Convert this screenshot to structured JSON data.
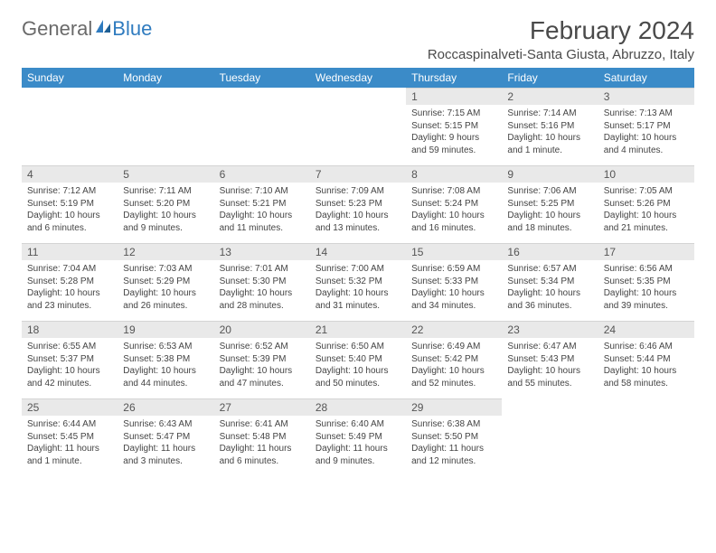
{
  "logo": {
    "text_gray": "General",
    "text_blue": "Blue"
  },
  "title": "February 2024",
  "location": "Roccaspinalveti-Santa Giusta, Abruzzo, Italy",
  "colors": {
    "header_bg": "#3b8bc8",
    "header_text": "#ffffff",
    "daynum_bg": "#e9e9e9",
    "body_text": "#444444",
    "page_bg": "#ffffff",
    "logo_gray": "#6a6a6a",
    "logo_blue": "#2f7bbf"
  },
  "weekdays": [
    "Sunday",
    "Monday",
    "Tuesday",
    "Wednesday",
    "Thursday",
    "Friday",
    "Saturday"
  ],
  "weeks": [
    [
      null,
      null,
      null,
      null,
      {
        "n": "1",
        "sunrise": "7:15 AM",
        "sunset": "5:15 PM",
        "daylight": "9 hours and 59 minutes."
      },
      {
        "n": "2",
        "sunrise": "7:14 AM",
        "sunset": "5:16 PM",
        "daylight": "10 hours and 1 minute."
      },
      {
        "n": "3",
        "sunrise": "7:13 AM",
        "sunset": "5:17 PM",
        "daylight": "10 hours and 4 minutes."
      }
    ],
    [
      {
        "n": "4",
        "sunrise": "7:12 AM",
        "sunset": "5:19 PM",
        "daylight": "10 hours and 6 minutes."
      },
      {
        "n": "5",
        "sunrise": "7:11 AM",
        "sunset": "5:20 PM",
        "daylight": "10 hours and 9 minutes."
      },
      {
        "n": "6",
        "sunrise": "7:10 AM",
        "sunset": "5:21 PM",
        "daylight": "10 hours and 11 minutes."
      },
      {
        "n": "7",
        "sunrise": "7:09 AM",
        "sunset": "5:23 PM",
        "daylight": "10 hours and 13 minutes."
      },
      {
        "n": "8",
        "sunrise": "7:08 AM",
        "sunset": "5:24 PM",
        "daylight": "10 hours and 16 minutes."
      },
      {
        "n": "9",
        "sunrise": "7:06 AM",
        "sunset": "5:25 PM",
        "daylight": "10 hours and 18 minutes."
      },
      {
        "n": "10",
        "sunrise": "7:05 AM",
        "sunset": "5:26 PM",
        "daylight": "10 hours and 21 minutes."
      }
    ],
    [
      {
        "n": "11",
        "sunrise": "7:04 AM",
        "sunset": "5:28 PM",
        "daylight": "10 hours and 23 minutes."
      },
      {
        "n": "12",
        "sunrise": "7:03 AM",
        "sunset": "5:29 PM",
        "daylight": "10 hours and 26 minutes."
      },
      {
        "n": "13",
        "sunrise": "7:01 AM",
        "sunset": "5:30 PM",
        "daylight": "10 hours and 28 minutes."
      },
      {
        "n": "14",
        "sunrise": "7:00 AM",
        "sunset": "5:32 PM",
        "daylight": "10 hours and 31 minutes."
      },
      {
        "n": "15",
        "sunrise": "6:59 AM",
        "sunset": "5:33 PM",
        "daylight": "10 hours and 34 minutes."
      },
      {
        "n": "16",
        "sunrise": "6:57 AM",
        "sunset": "5:34 PM",
        "daylight": "10 hours and 36 minutes."
      },
      {
        "n": "17",
        "sunrise": "6:56 AM",
        "sunset": "5:35 PM",
        "daylight": "10 hours and 39 minutes."
      }
    ],
    [
      {
        "n": "18",
        "sunrise": "6:55 AM",
        "sunset": "5:37 PM",
        "daylight": "10 hours and 42 minutes."
      },
      {
        "n": "19",
        "sunrise": "6:53 AM",
        "sunset": "5:38 PM",
        "daylight": "10 hours and 44 minutes."
      },
      {
        "n": "20",
        "sunrise": "6:52 AM",
        "sunset": "5:39 PM",
        "daylight": "10 hours and 47 minutes."
      },
      {
        "n": "21",
        "sunrise": "6:50 AM",
        "sunset": "5:40 PM",
        "daylight": "10 hours and 50 minutes."
      },
      {
        "n": "22",
        "sunrise": "6:49 AM",
        "sunset": "5:42 PM",
        "daylight": "10 hours and 52 minutes."
      },
      {
        "n": "23",
        "sunrise": "6:47 AM",
        "sunset": "5:43 PM",
        "daylight": "10 hours and 55 minutes."
      },
      {
        "n": "24",
        "sunrise": "6:46 AM",
        "sunset": "5:44 PM",
        "daylight": "10 hours and 58 minutes."
      }
    ],
    [
      {
        "n": "25",
        "sunrise": "6:44 AM",
        "sunset": "5:45 PM",
        "daylight": "11 hours and 1 minute."
      },
      {
        "n": "26",
        "sunrise": "6:43 AM",
        "sunset": "5:47 PM",
        "daylight": "11 hours and 3 minutes."
      },
      {
        "n": "27",
        "sunrise": "6:41 AM",
        "sunset": "5:48 PM",
        "daylight": "11 hours and 6 minutes."
      },
      {
        "n": "28",
        "sunrise": "6:40 AM",
        "sunset": "5:49 PM",
        "daylight": "11 hours and 9 minutes."
      },
      {
        "n": "29",
        "sunrise": "6:38 AM",
        "sunset": "5:50 PM",
        "daylight": "11 hours and 12 minutes."
      },
      null,
      null
    ]
  ],
  "labels": {
    "sunrise": "Sunrise:",
    "sunset": "Sunset:",
    "daylight": "Daylight:"
  }
}
